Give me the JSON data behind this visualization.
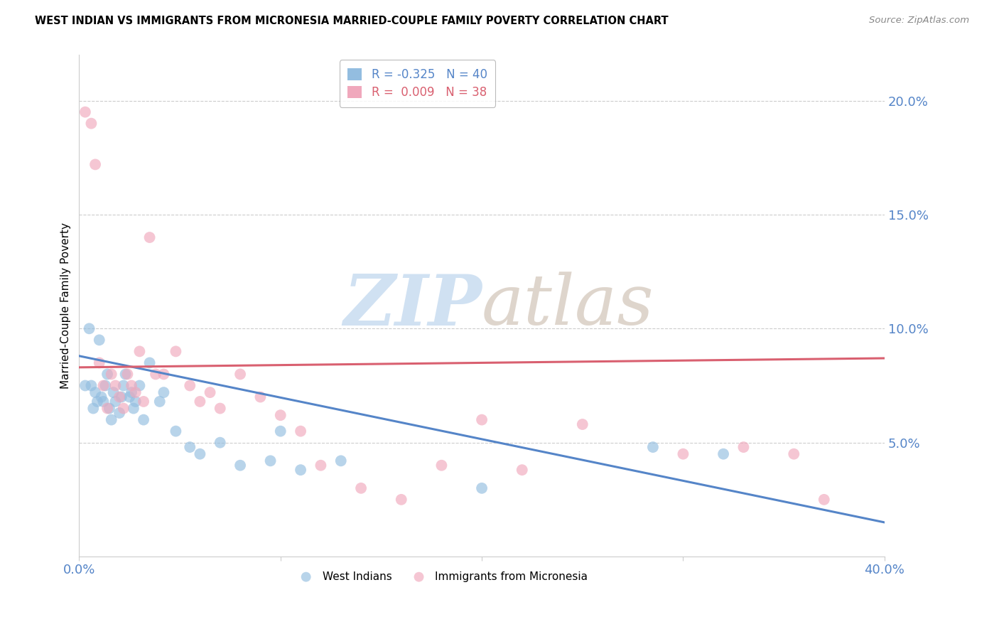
{
  "title": "WEST INDIAN VS IMMIGRANTS FROM MICRONESIA MARRIED-COUPLE FAMILY POVERTY CORRELATION CHART",
  "source": "Source: ZipAtlas.com",
  "ylabel": "Married-Couple Family Poverty",
  "xlim": [
    0.0,
    0.4
  ],
  "ylim": [
    0.0,
    0.22
  ],
  "xtick_positions": [
    0.0,
    0.1,
    0.2,
    0.3,
    0.4
  ],
  "xtick_labels": [
    "0.0%",
    "",
    "",
    "",
    "40.0%"
  ],
  "yticks_right": [
    0.05,
    0.1,
    0.15,
    0.2
  ],
  "ytick_labels_right": [
    "5.0%",
    "10.0%",
    "15.0%",
    "20.0%"
  ],
  "blue_color": "#93BDE0",
  "pink_color": "#F0A8BC",
  "blue_line_color": "#5585C8",
  "pink_line_color": "#D96070",
  "legend_blue_label": "R = -0.325   N = 40",
  "legend_pink_label": "R =  0.009   N = 38",
  "legend_label_west": "West Indians",
  "legend_label_micro": "Immigrants from Micronesia",
  "blue_line_x0": 0.0,
  "blue_line_y0": 0.088,
  "blue_line_x1": 0.4,
  "blue_line_y1": 0.015,
  "pink_line_x0": 0.0,
  "pink_line_y0": 0.083,
  "pink_line_x1": 0.4,
  "pink_line_y1": 0.087,
  "blue_x": [
    0.003,
    0.005,
    0.006,
    0.007,
    0.008,
    0.009,
    0.01,
    0.011,
    0.012,
    0.013,
    0.014,
    0.015,
    0.016,
    0.017,
    0.018,
    0.02,
    0.021,
    0.022,
    0.023,
    0.025,
    0.026,
    0.027,
    0.028,
    0.03,
    0.032,
    0.035,
    0.04,
    0.042,
    0.048,
    0.055,
    0.06,
    0.07,
    0.08,
    0.095,
    0.1,
    0.11,
    0.13,
    0.2,
    0.285,
    0.32
  ],
  "blue_y": [
    0.075,
    0.1,
    0.075,
    0.065,
    0.072,
    0.068,
    0.095,
    0.07,
    0.068,
    0.075,
    0.08,
    0.065,
    0.06,
    0.072,
    0.068,
    0.063,
    0.07,
    0.075,
    0.08,
    0.07,
    0.072,
    0.065,
    0.068,
    0.075,
    0.06,
    0.085,
    0.068,
    0.072,
    0.055,
    0.048,
    0.045,
    0.05,
    0.04,
    0.042,
    0.055,
    0.038,
    0.042,
    0.03,
    0.048,
    0.045
  ],
  "pink_x": [
    0.003,
    0.006,
    0.008,
    0.01,
    0.012,
    0.014,
    0.016,
    0.018,
    0.02,
    0.022,
    0.024,
    0.026,
    0.028,
    0.03,
    0.032,
    0.035,
    0.038,
    0.042,
    0.048,
    0.055,
    0.06,
    0.065,
    0.07,
    0.08,
    0.09,
    0.1,
    0.11,
    0.12,
    0.14,
    0.16,
    0.18,
    0.2,
    0.22,
    0.25,
    0.3,
    0.33,
    0.355,
    0.37
  ],
  "pink_y": [
    0.195,
    0.19,
    0.172,
    0.085,
    0.075,
    0.065,
    0.08,
    0.075,
    0.07,
    0.065,
    0.08,
    0.075,
    0.072,
    0.09,
    0.068,
    0.14,
    0.08,
    0.08,
    0.09,
    0.075,
    0.068,
    0.072,
    0.065,
    0.08,
    0.07,
    0.062,
    0.055,
    0.04,
    0.03,
    0.025,
    0.04,
    0.06,
    0.038,
    0.058,
    0.045,
    0.048,
    0.045,
    0.025
  ]
}
